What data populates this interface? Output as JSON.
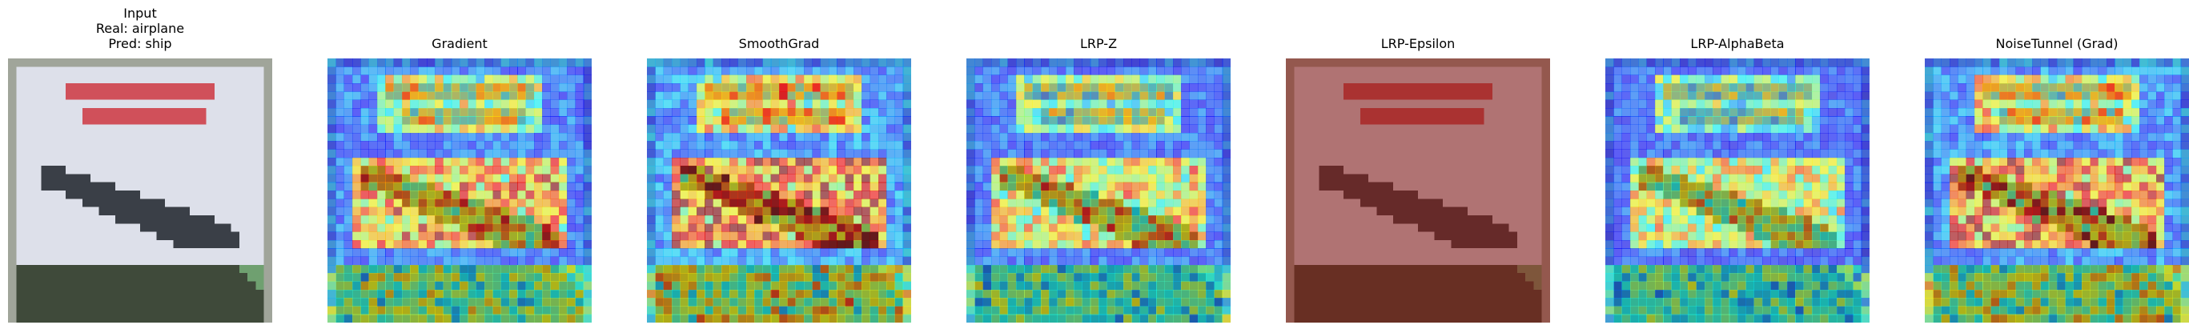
{
  "figure": {
    "panels": [
      {
        "id": "input",
        "title_lines": [
          "Input",
          "Real: airplane",
          "Pred: ship"
        ],
        "kind": "input",
        "overlay_tint": "#000000",
        "overlay_opacity": 0
      },
      {
        "id": "gradient",
        "title_lines": [
          "Gradient"
        ],
        "kind": "heatmap",
        "method_seed": 11,
        "heat_gain": 1.0,
        "overlay_opacity": 0.58
      },
      {
        "id": "smoothgrad",
        "title_lines": [
          "SmoothGrad"
        ],
        "kind": "heatmap",
        "method_seed": 23,
        "heat_gain": 1.15,
        "overlay_opacity": 0.58
      },
      {
        "id": "lrp-z",
        "title_lines": [
          "LRP-Z"
        ],
        "kind": "heatmap",
        "method_seed": 37,
        "heat_gain": 0.9,
        "overlay_opacity": 0.58
      },
      {
        "id": "lrp-epsilon",
        "title_lines": [
          "LRP-Epsilon"
        ],
        "kind": "tinted",
        "overlay_tint": "#8b1a10",
        "overlay_opacity": 0.55
      },
      {
        "id": "lrp-alphabeta",
        "title_lines": [
          "LRP-AlphaBeta"
        ],
        "kind": "heatmap",
        "method_seed": 53,
        "heat_gain": 0.85,
        "overlay_opacity": 0.58
      },
      {
        "id": "noisetunnel-grad",
        "title_lines": [
          "NoiseTunnel (Grad)"
        ],
        "kind": "heatmap",
        "method_seed": 71,
        "heat_gain": 1.1,
        "overlay_opacity": 0.58
      }
    ],
    "colors": {
      "sky": "#dde0ea",
      "sign_text": "#d0505a",
      "plane": "#3a3f47",
      "ground": "#3f4a3a",
      "border": "#a0a59a",
      "stripe": "#6fa070"
    }
  }
}
